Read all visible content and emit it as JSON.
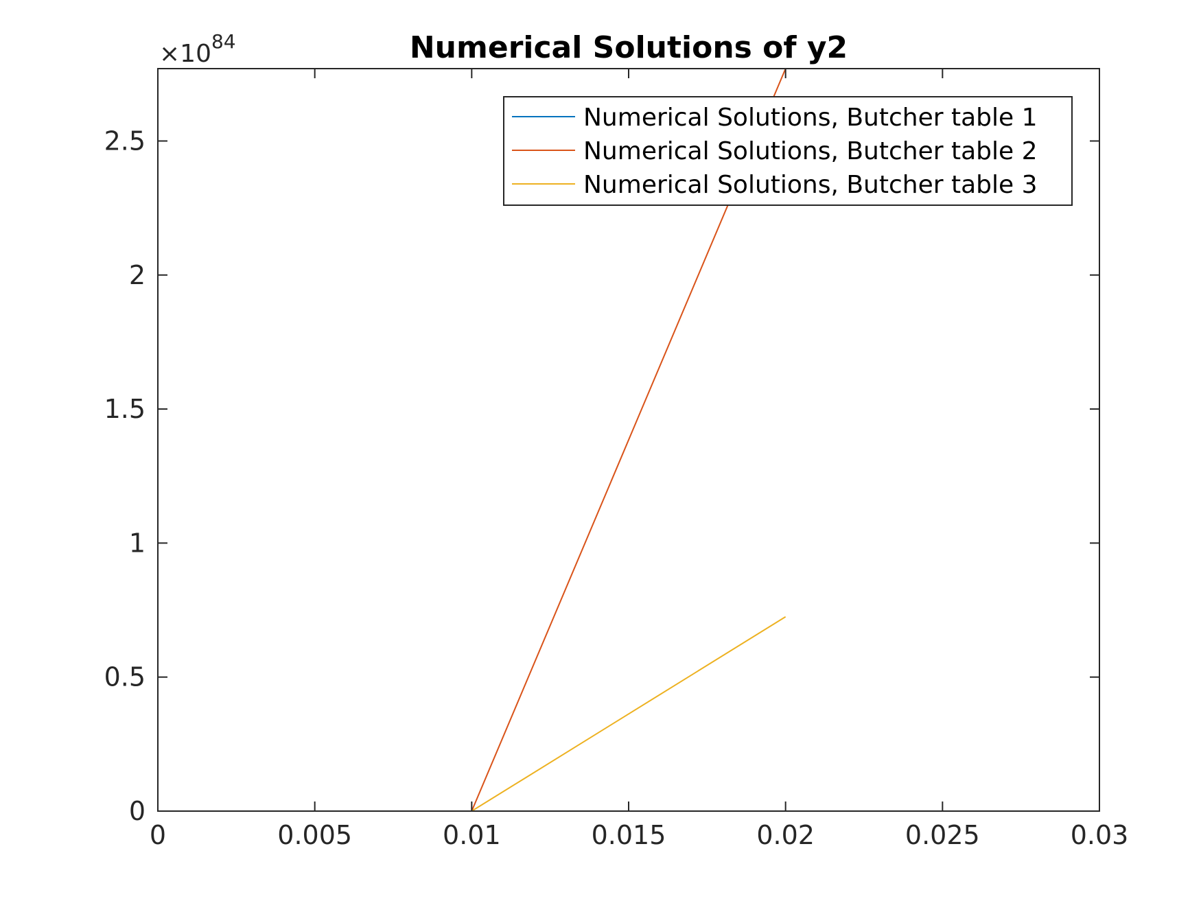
{
  "chart_data": {
    "type": "line",
    "title": "Numerical Solutions of y2",
    "xlabel": "",
    "ylabel": "",
    "xlim": [
      0,
      0.03
    ],
    "ylim": [
      0,
      2.77
    ],
    "y_exponent_label": {
      "prefix": "×10",
      "power": "84"
    },
    "x_ticks": [
      0,
      0.005,
      0.01,
      0.015,
      0.02,
      0.025,
      0.03
    ],
    "x_tick_labels": [
      "0",
      "0.005",
      "0.01",
      "0.015",
      "0.02",
      "0.025",
      "0.03"
    ],
    "y_ticks": [
      0,
      0.5,
      1,
      1.5,
      2,
      2.5
    ],
    "y_tick_labels": [
      "0",
      "0.5",
      "1",
      "1.5",
      "2",
      "2.5"
    ],
    "grid": false,
    "legend_position": "top-right",
    "series": [
      {
        "name": "Numerical Solutions, Butcher table 1",
        "color": "#0072BD",
        "x": [
          0,
          0.01,
          0.02,
          0.03
        ],
        "y": [
          0,
          0,
          0,
          0
        ]
      },
      {
        "name": "Numerical Solutions, Butcher table 2",
        "color": "#D95319",
        "x": [
          0,
          0.01,
          0.02
        ],
        "y": [
          0,
          0,
          2.77
        ]
      },
      {
        "name": "Numerical Solutions, Butcher table 3",
        "color": "#EDB120",
        "x": [
          0,
          0.01,
          0.02
        ],
        "y": [
          0,
          0,
          0.725
        ]
      }
    ]
  }
}
